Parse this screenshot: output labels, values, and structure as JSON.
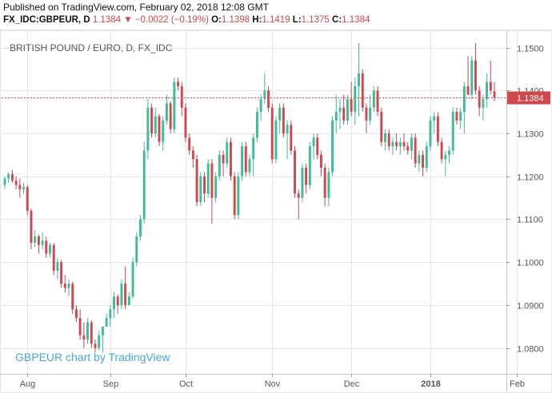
{
  "header": {
    "published": "Published on TradingView.com, February 02, 2018 12:08 GMT",
    "symbol": "FX_IDC:GBPEUR, D",
    "last": "1.1384",
    "arrow": "▼",
    "change": "−0.0022 (−0.19%)",
    "o_label": "O:",
    "o_value": "1.1398",
    "h_label": "H:",
    "h_value": "1.1419",
    "l_label": "L:",
    "l_value": "1.1375",
    "c_label": "C:",
    "c_value": "1.1384"
  },
  "chart_data": {
    "type": "candlestick",
    "title": "BRITISH POUND / EURO, D, FX_IDC",
    "watermark": "GBPEUR chart by TradingView",
    "ylim": [
      1.074,
      1.154
    ],
    "y_ticks": [
      "1.1500",
      "1.1400",
      "1.1300",
      "1.1200",
      "1.1100",
      "1.1000",
      "1.0900",
      "1.0800"
    ],
    "x_tick_labels": [
      {
        "label": "Aug",
        "index": 6
      },
      {
        "label": "Sep",
        "index": 28
      },
      {
        "label": "Oct",
        "index": 48
      },
      {
        "label": "Nov",
        "index": 71
      },
      {
        "label": "Dec",
        "index": 92
      },
      {
        "label": "2018",
        "index": 113,
        "bold": true
      },
      {
        "label": "Feb",
        "index": 136
      }
    ],
    "last_price": 1.1384,
    "last_price_label": "1.1384",
    "grid": true,
    "colors": {
      "up": "#3cbc98",
      "down": "#d2464d",
      "grid": "#e6e6e6",
      "text": "#555555",
      "watermark": "#49a7d9"
    },
    "candles": [
      [
        1.118,
        1.12,
        1.117,
        1.1195
      ],
      [
        1.1195,
        1.121,
        1.1185,
        1.1205
      ],
      [
        1.1205,
        1.1215,
        1.1185,
        1.119
      ],
      [
        1.119,
        1.12,
        1.117,
        1.118
      ],
      [
        1.118,
        1.1195,
        1.115,
        1.117
      ],
      [
        1.117,
        1.1185,
        1.116,
        1.1175
      ],
      [
        1.1175,
        1.118,
        1.111,
        1.112
      ],
      [
        1.112,
        1.1125,
        1.103,
        1.1045
      ],
      [
        1.1045,
        1.1075,
        1.1035,
        1.106
      ],
      [
        1.106,
        1.1065,
        1.102,
        1.104
      ],
      [
        1.104,
        1.107,
        1.103,
        1.105
      ],
      [
        1.105,
        1.106,
        1.101,
        1.102
      ],
      [
        1.102,
        1.1045,
        1.101,
        1.104
      ],
      [
        1.104,
        1.1045,
        1.097,
        1.098
      ],
      [
        1.098,
        1.101,
        1.096,
        1.1
      ],
      [
        1.1,
        1.1005,
        1.094,
        1.095
      ],
      [
        1.095,
        1.097,
        1.093,
        1.094
      ],
      [
        1.094,
        1.096,
        1.092,
        1.095
      ],
      [
        1.095,
        1.0955,
        1.088,
        1.089
      ],
      [
        1.089,
        1.09,
        1.086,
        1.087
      ],
      [
        1.087,
        1.089,
        1.082,
        1.083
      ],
      [
        1.083,
        1.086,
        1.08,
        1.082
      ],
      [
        1.082,
        1.087,
        1.081,
        1.086
      ],
      [
        1.086,
        1.0865,
        1.08,
        1.081
      ],
      [
        1.081,
        1.082,
        1.079,
        1.08
      ],
      [
        1.08,
        1.084,
        1.0795,
        1.083
      ],
      [
        1.083,
        1.085,
        1.079,
        1.085
      ],
      [
        1.085,
        1.088,
        1.085,
        1.087
      ],
      [
        1.087,
        1.09,
        1.085,
        1.089
      ],
      [
        1.089,
        1.093,
        1.087,
        1.092
      ],
      [
        1.092,
        1.0925,
        1.088,
        1.09
      ],
      [
        1.09,
        1.096,
        1.089,
        1.095
      ],
      [
        1.095,
        1.099,
        1.089,
        1.09
      ],
      [
        1.09,
        1.093,
        1.09,
        1.092
      ],
      [
        1.092,
        1.101,
        1.0915,
        1.1
      ],
      [
        1.1,
        1.107,
        1.099,
        1.106
      ],
      [
        1.106,
        1.111,
        1.105,
        1.11
      ],
      [
        1.11,
        1.128,
        1.109,
        1.126
      ],
      [
        1.126,
        1.138,
        1.124,
        1.136
      ],
      [
        1.136,
        1.137,
        1.129,
        1.13
      ],
      [
        1.13,
        1.136,
        1.129,
        1.134
      ],
      [
        1.134,
        1.1345,
        1.127,
        1.128
      ],
      [
        1.128,
        1.134,
        1.126,
        1.133
      ],
      [
        1.133,
        1.139,
        1.132,
        1.137
      ],
      [
        1.137,
        1.1375,
        1.13,
        1.131
      ],
      [
        1.131,
        1.143,
        1.13,
        1.142
      ],
      [
        1.142,
        1.143,
        1.14,
        1.141
      ],
      [
        1.141,
        1.142,
        1.134,
        1.136
      ],
      [
        1.136,
        1.137,
        1.128,
        1.129
      ],
      [
        1.129,
        1.13,
        1.125,
        1.126
      ],
      [
        1.126,
        1.127,
        1.122,
        1.124
      ],
      [
        1.124,
        1.125,
        1.113,
        1.114
      ],
      [
        1.114,
        1.121,
        1.113,
        1.12
      ],
      [
        1.12,
        1.121,
        1.114,
        1.116
      ],
      [
        1.116,
        1.124,
        1.115,
        1.123
      ],
      [
        1.123,
        1.124,
        1.109,
        1.115
      ],
      [
        1.115,
        1.121,
        1.114,
        1.12
      ],
      [
        1.12,
        1.126,
        1.119,
        1.125
      ],
      [
        1.125,
        1.126,
        1.12,
        1.123
      ],
      [
        1.123,
        1.129,
        1.122,
        1.128
      ],
      [
        1.128,
        1.129,
        1.119,
        1.12
      ],
      [
        1.12,
        1.121,
        1.11,
        1.111
      ],
      [
        1.111,
        1.121,
        1.11,
        1.12
      ],
      [
        1.12,
        1.128,
        1.119,
        1.127
      ],
      [
        1.127,
        1.128,
        1.12,
        1.121
      ],
      [
        1.121,
        1.125,
        1.12,
        1.124
      ],
      [
        1.124,
        1.13,
        1.12,
        1.129
      ],
      [
        1.129,
        1.136,
        1.128,
        1.135
      ],
      [
        1.135,
        1.139,
        1.133,
        1.138
      ],
      [
        1.138,
        1.144,
        1.137,
        1.14
      ],
      [
        1.14,
        1.141,
        1.135,
        1.136
      ],
      [
        1.136,
        1.137,
        1.123,
        1.124
      ],
      [
        1.124,
        1.134,
        1.123,
        1.133
      ],
      [
        1.133,
        1.137,
        1.13,
        1.136
      ],
      [
        1.136,
        1.137,
        1.129,
        1.13
      ],
      [
        1.13,
        1.133,
        1.124,
        1.132
      ],
      [
        1.132,
        1.133,
        1.125,
        1.126
      ],
      [
        1.126,
        1.127,
        1.115,
        1.116
      ],
      [
        1.116,
        1.117,
        1.11,
        1.115
      ],
      [
        1.115,
        1.123,
        1.114,
        1.122
      ],
      [
        1.122,
        1.123,
        1.116,
        1.118
      ],
      [
        1.118,
        1.128,
        1.117,
        1.127
      ],
      [
        1.127,
        1.13,
        1.124,
        1.129
      ],
      [
        1.129,
        1.13,
        1.124,
        1.125
      ],
      [
        1.125,
        1.126,
        1.12,
        1.122
      ],
      [
        1.122,
        1.123,
        1.113,
        1.115
      ],
      [
        1.115,
        1.122,
        1.113,
        1.121
      ],
      [
        1.121,
        1.134,
        1.12,
        1.133
      ],
      [
        1.133,
        1.139,
        1.13,
        1.135
      ],
      [
        1.135,
        1.138,
        1.131,
        1.136
      ],
      [
        1.136,
        1.139,
        1.132,
        1.133
      ],
      [
        1.133,
        1.139,
        1.132,
        1.138
      ],
      [
        1.138,
        1.142,
        1.134,
        1.135
      ],
      [
        1.135,
        1.143,
        1.132,
        1.141
      ],
      [
        1.141,
        1.151,
        1.134,
        1.144
      ],
      [
        1.144,
        1.145,
        1.135,
        1.136
      ],
      [
        1.136,
        1.137,
        1.13,
        1.133
      ],
      [
        1.133,
        1.139,
        1.132,
        1.136
      ],
      [
        1.136,
        1.141,
        1.135,
        1.14
      ],
      [
        1.14,
        1.141,
        1.134,
        1.135
      ],
      [
        1.135,
        1.136,
        1.127,
        1.128
      ],
      [
        1.128,
        1.131,
        1.126,
        1.13
      ],
      [
        1.13,
        1.131,
        1.126,
        1.127
      ],
      [
        1.127,
        1.129,
        1.125,
        1.128
      ],
      [
        1.128,
        1.13,
        1.126,
        1.127
      ],
      [
        1.127,
        1.129,
        1.125,
        1.128
      ],
      [
        1.128,
        1.13,
        1.126,
        1.127
      ],
      [
        1.127,
        1.128,
        1.125,
        1.126
      ],
      [
        1.126,
        1.13,
        1.124,
        1.129
      ],
      [
        1.129,
        1.13,
        1.122,
        1.123
      ],
      [
        1.123,
        1.126,
        1.121,
        1.125
      ],
      [
        1.125,
        1.126,
        1.12,
        1.122
      ],
      [
        1.122,
        1.128,
        1.121,
        1.127
      ],
      [
        1.127,
        1.134,
        1.126,
        1.133
      ],
      [
        1.133,
        1.135,
        1.13,
        1.134
      ],
      [
        1.134,
        1.135,
        1.127,
        1.128
      ],
      [
        1.128,
        1.129,
        1.123,
        1.124
      ],
      [
        1.124,
        1.126,
        1.12,
        1.125
      ],
      [
        1.125,
        1.127,
        1.123,
        1.126
      ],
      [
        1.126,
        1.136,
        1.125,
        1.135
      ],
      [
        1.135,
        1.136,
        1.132,
        1.133
      ],
      [
        1.133,
        1.136,
        1.131,
        1.135
      ],
      [
        1.135,
        1.142,
        1.13,
        1.141
      ],
      [
        1.141,
        1.148,
        1.139,
        1.139
      ],
      [
        1.139,
        1.148,
        1.138,
        1.147
      ],
      [
        1.147,
        1.151,
        1.139,
        1.14
      ],
      [
        1.14,
        1.141,
        1.134,
        1.136
      ],
      [
        1.136,
        1.139,
        1.133,
        1.138
      ],
      [
        1.138,
        1.144,
        1.136,
        1.142
      ],
      [
        1.142,
        1.147,
        1.139,
        1.14
      ],
      [
        1.1398,
        1.1419,
        1.1375,
        1.1384
      ]
    ]
  }
}
